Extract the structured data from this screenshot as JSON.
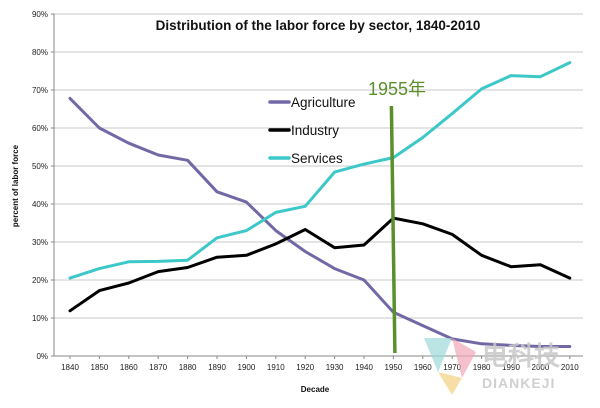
{
  "chart_data": {
    "type": "line",
    "title": "Distribution of the labor force by sector, 1840-2010",
    "xlabel": "Decade",
    "ylabel": "percent of labor force",
    "categories": [
      1840,
      1850,
      1860,
      1870,
      1880,
      1890,
      1900,
      1910,
      1920,
      1930,
      1940,
      1950,
      1960,
      1970,
      1980,
      1990,
      2000,
      2010
    ],
    "x_tick_labels": [
      "1840",
      "1850",
      "1860",
      "1870",
      "1880",
      "1890",
      "1900",
      "1910",
      "1920",
      "1930",
      "1940",
      "1950",
      "1960",
      "1970",
      "1980",
      "1990",
      "2000",
      "2010"
    ],
    "ylim": [
      0,
      90
    ],
    "y_ticks": [
      0,
      10,
      20,
      30,
      40,
      50,
      60,
      70,
      80,
      90
    ],
    "y_tick_labels": [
      "0%",
      "10%",
      "20%",
      "30%",
      "40%",
      "50%",
      "60%",
      "70%",
      "80%",
      "90%"
    ],
    "grid": true,
    "legend_position": "top-center",
    "series": [
      {
        "name": "Agriculture",
        "color": "#7268a6",
        "values": [
          67.8,
          60,
          56,
          52.9,
          51.5,
          43.2,
          40.5,
          33,
          27.5,
          23,
          20,
          11.5,
          8,
          4.5,
          3.2,
          2.8,
          2.5,
          2.5
        ]
      },
      {
        "name": "Industry",
        "color": "#000000",
        "values": [
          11.9,
          17.2,
          19.2,
          22.2,
          23.3,
          26,
          26.5,
          29.5,
          33.3,
          28.5,
          29.2,
          36.3,
          34.8,
          32,
          26.5,
          23.5,
          24,
          20.5
        ]
      },
      {
        "name": "Services",
        "color": "#3cc8c8",
        "values": [
          20.5,
          23,
          24.8,
          24.9,
          25.2,
          31.1,
          33,
          37.8,
          39.4,
          48.4,
          50.5,
          52.2,
          57.5,
          63.8,
          70.3,
          73.8,
          73.5,
          77.2
        ]
      }
    ],
    "annotation": {
      "label": "1955年",
      "x": 1950,
      "color": "#5a8f2c"
    }
  },
  "watermark": {
    "chinese": "电科技",
    "english": "DIANKEJI"
  }
}
